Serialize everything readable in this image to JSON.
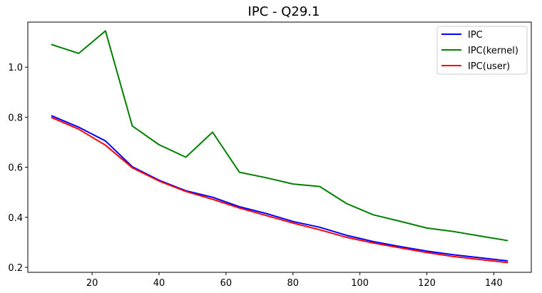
{
  "chart_data": {
    "type": "line",
    "title": "IPC - Q29.1",
    "xlabel": "",
    "ylabel": "",
    "x": [
      8,
      16,
      24,
      32,
      40,
      48,
      56,
      64,
      72,
      80,
      88,
      96,
      104,
      112,
      120,
      128,
      136,
      144
    ],
    "xlim": [
      0.8,
      151.2
    ],
    "ylim": [
      0.18,
      1.18
    ],
    "xticks": [
      20,
      40,
      60,
      80,
      100,
      120,
      140
    ],
    "yticks": [
      0.2,
      0.4,
      0.6,
      0.8,
      1.0
    ],
    "ytick_labels": [
      "0.2",
      "0.4",
      "0.6",
      "0.8",
      "1.0"
    ],
    "grid": false,
    "legend_position": "top-right",
    "series": [
      {
        "name": "IPC",
        "color": "#0000ff",
        "values": [
          0.805,
          0.76,
          0.705,
          0.602,
          0.548,
          0.506,
          0.48,
          0.442,
          0.415,
          0.383,
          0.36,
          0.328,
          0.303,
          0.283,
          0.265,
          0.25,
          0.238,
          0.226
        ]
      },
      {
        "name": "IPC(kernel)",
        "color": "#008000",
        "values": [
          1.09,
          1.055,
          1.145,
          0.765,
          0.69,
          0.64,
          0.74,
          0.58,
          0.558,
          0.533,
          0.523,
          0.455,
          0.41,
          0.384,
          0.357,
          0.343,
          0.325,
          0.307
        ]
      },
      {
        "name": "IPC(user)",
        "color": "#ff0000",
        "values": [
          0.798,
          0.752,
          0.688,
          0.598,
          0.545,
          0.503,
          0.472,
          0.437,
          0.407,
          0.377,
          0.35,
          0.32,
          0.297,
          0.278,
          0.259,
          0.243,
          0.231,
          0.219
        ]
      }
    ]
  }
}
